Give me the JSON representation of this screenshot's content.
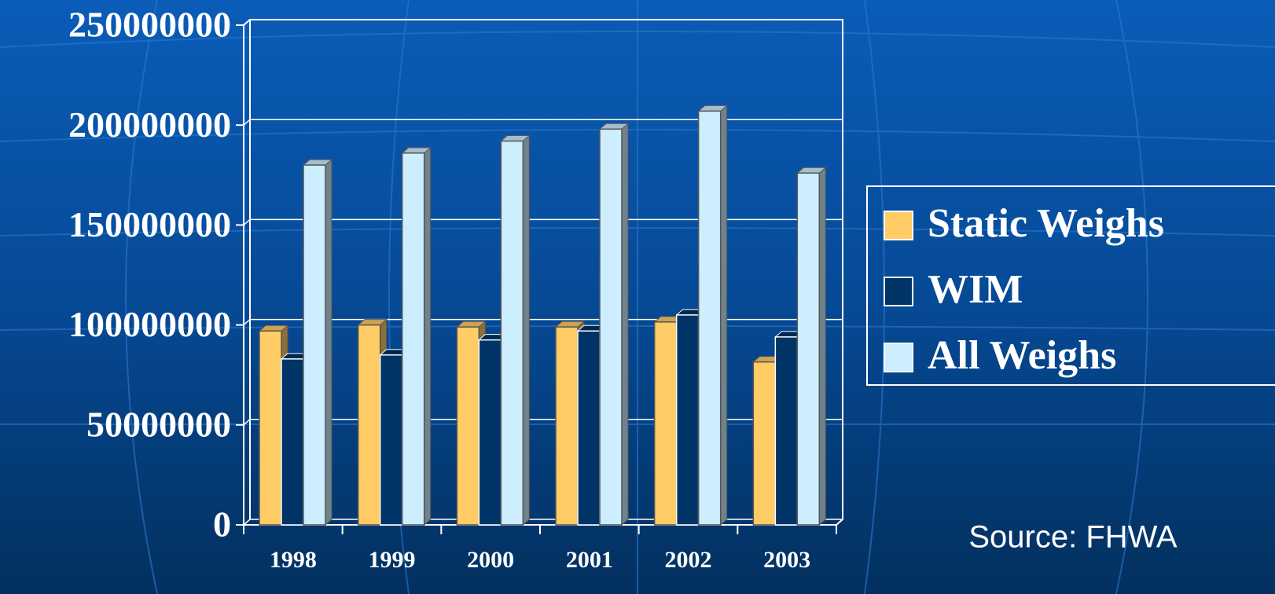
{
  "chart_data": {
    "type": "bar3d",
    "categories": [
      "1998",
      "1999",
      "2000",
      "2001",
      "2002",
      "2003"
    ],
    "series": [
      {
        "name": "Static Weighs",
        "color": "#ffcc66",
        "values": [
          97000000,
          100000000,
          99000000,
          99000000,
          101500000,
          81500000
        ]
      },
      {
        "name": "WIM",
        "color": "#003366",
        "values": [
          83000000,
          85000000,
          92500000,
          97000000,
          105000000,
          94000000
        ]
      },
      {
        "name": "All Weighs",
        "color": "#cceeff",
        "values": [
          180000000,
          186000000,
          192000000,
          198000000,
          207000000,
          176000000
        ]
      }
    ],
    "ylim": [
      0,
      250000000
    ],
    "yticks": [
      0,
      50000000,
      100000000,
      150000000,
      200000000,
      250000000
    ],
    "grid": true,
    "source": "Source:  FHWA"
  }
}
